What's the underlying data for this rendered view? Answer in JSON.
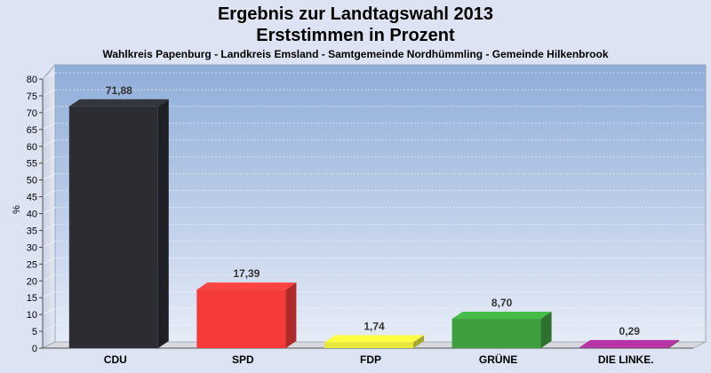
{
  "chart_data": {
    "type": "bar",
    "title": "Ergebnis zur Landtagswahl 2013",
    "subtitle_line2": "Erststimmen in Prozent",
    "subtitle": "Wahlkreis Papenburg - Landkreis Emsland - Samtgemeinde Nordhümmling - Gemeinde Hilkenbrook",
    "ylabel": "%",
    "xlabel": "",
    "ylim": [
      0,
      80
    ],
    "ytick_step": 5,
    "grid": true,
    "legend": "none",
    "categories": [
      "CDU",
      "SPD",
      "FDP",
      "GRÜNE",
      "DIE LINKE."
    ],
    "values": [
      71.88,
      17.39,
      1.74,
      8.7,
      0.29
    ],
    "value_labels": [
      "71,88",
      "17,39",
      "1,74",
      "8,70",
      "0,29"
    ],
    "colors": [
      "#2b2d33",
      "#f53a3a",
      "#e8e83a",
      "#3d9f3d",
      "#9c2a8c"
    ]
  }
}
